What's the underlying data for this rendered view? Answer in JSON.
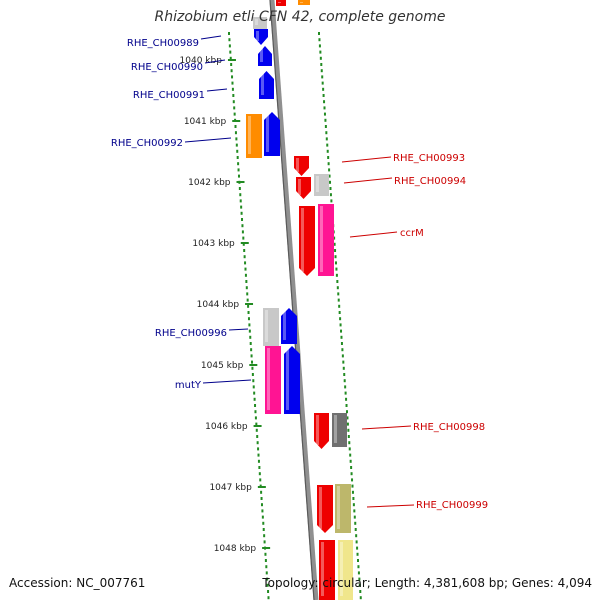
{
  "title": "Rhizobium etli CFN 42, complete genome",
  "accession": "Accession: NC_007761",
  "summary": "Topology: circular; Length: 4,381,608 bp; Genes: 4,094",
  "colors": {
    "blue": "#0000ee",
    "red": "#ee0000",
    "orange": "#ff8c00",
    "pink": "#ff1493",
    "lightgray": "#c8c8c8",
    "darkgray": "#707070",
    "olive": "#bdb76b",
    "khaki": "#f0e68c",
    "tick_green": "#228b22",
    "label_blue": "#00008b",
    "label_red": "#cc0000"
  },
  "ticks": [
    "1040 kbp",
    "1041 kbp",
    "1042 kbp",
    "1043 kbp",
    "1044 kbp",
    "1045 kbp",
    "1046 kbp",
    "1047 kbp",
    "1048 kbp"
  ],
  "genes": [
    {
      "name": "RHE_CH00989",
      "strand": "left",
      "color": "blue"
    },
    {
      "name": "RHE_CH00990",
      "strand": "left",
      "color": "blue"
    },
    {
      "name": "RHE_CH00991",
      "strand": "left",
      "color": "blue"
    },
    {
      "name": "RHE_CH00992",
      "strand": "left",
      "color": "blue"
    },
    {
      "name": "RHE_CH00993",
      "strand": "right",
      "color": "red"
    },
    {
      "name": "RHE_CH00994",
      "strand": "right",
      "color": "red"
    },
    {
      "name": "ccrM",
      "strand": "right",
      "color": "red"
    },
    {
      "name": "RHE_CH00996",
      "strand": "left",
      "color": "blue"
    },
    {
      "name": "mutY",
      "strand": "left",
      "color": "blue"
    },
    {
      "name": "RHE_CH00998",
      "strand": "right",
      "color": "red"
    },
    {
      "name": "RHE_CH00999",
      "strand": "right",
      "color": "red"
    }
  ]
}
